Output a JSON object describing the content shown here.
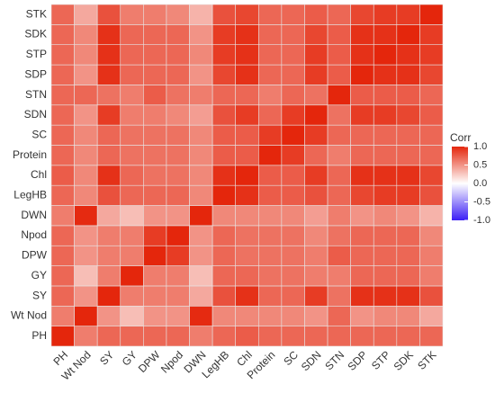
{
  "chart_data": {
    "type": "heatmap",
    "categories": [
      "PH",
      "Wt Nod",
      "SY",
      "GY",
      "DPW",
      "Npod",
      "DWN",
      "LegHB",
      "Chl",
      "Protein",
      "SC",
      "SDN",
      "STN",
      "SDP",
      "STP",
      "SDK",
      "STK"
    ],
    "values": [
      [
        1,
        0.6,
        0.7,
        0.7,
        0.7,
        0.7,
        0.6,
        0.7,
        0.75,
        0.7,
        0.7,
        0.7,
        0.7,
        0.7,
        0.7,
        0.7,
        0.7
      ],
      [
        0.6,
        1,
        0.5,
        0.3,
        0.5,
        0.5,
        0.98,
        0.55,
        0.55,
        0.55,
        0.55,
        0.5,
        0.7,
        0.5,
        0.55,
        0.55,
        0.4
      ],
      [
        0.7,
        0.5,
        1,
        0.6,
        0.6,
        0.6,
        0.4,
        0.8,
        0.95,
        0.7,
        0.7,
        0.9,
        0.65,
        0.95,
        0.95,
        0.95,
        0.8
      ],
      [
        0.7,
        0.3,
        0.6,
        1,
        0.6,
        0.6,
        0.3,
        0.7,
        0.7,
        0.65,
        0.65,
        0.6,
        0.6,
        0.7,
        0.7,
        0.7,
        0.6
      ],
      [
        0.7,
        0.5,
        0.6,
        0.6,
        1,
        0.9,
        0.5,
        0.7,
        0.65,
        0.65,
        0.65,
        0.6,
        0.75,
        0.7,
        0.7,
        0.7,
        0.6
      ],
      [
        0.7,
        0.5,
        0.6,
        0.6,
        0.9,
        1,
        0.5,
        0.7,
        0.65,
        0.65,
        0.65,
        0.55,
        0.65,
        0.7,
        0.7,
        0.7,
        0.55
      ],
      [
        0.6,
        0.98,
        0.4,
        0.3,
        0.5,
        0.5,
        1,
        0.55,
        0.55,
        0.55,
        0.55,
        0.45,
        0.6,
        0.5,
        0.55,
        0.5,
        0.35
      ],
      [
        0.7,
        0.55,
        0.8,
        0.7,
        0.7,
        0.7,
        0.55,
        1,
        0.95,
        0.75,
        0.75,
        0.8,
        0.7,
        0.85,
        0.9,
        0.9,
        0.8
      ],
      [
        0.75,
        0.55,
        0.95,
        0.7,
        0.65,
        0.65,
        0.55,
        0.95,
        1,
        0.75,
        0.75,
        0.9,
        0.7,
        0.95,
        0.95,
        0.95,
        0.85
      ],
      [
        0.7,
        0.55,
        0.7,
        0.65,
        0.65,
        0.65,
        0.55,
        0.75,
        0.75,
        1,
        0.9,
        0.7,
        0.6,
        0.7,
        0.7,
        0.7,
        0.7
      ],
      [
        0.7,
        0.55,
        0.7,
        0.65,
        0.65,
        0.65,
        0.55,
        0.75,
        0.75,
        0.9,
        1,
        0.9,
        0.7,
        0.7,
        0.7,
        0.7,
        0.7
      ],
      [
        0.7,
        0.5,
        0.9,
        0.6,
        0.6,
        0.55,
        0.45,
        0.8,
        0.9,
        0.7,
        0.9,
        1,
        0.65,
        0.9,
        0.9,
        0.85,
        0.75
      ],
      [
        0.7,
        0.7,
        0.65,
        0.6,
        0.75,
        0.65,
        0.6,
        0.7,
        0.7,
        0.6,
        0.7,
        0.65,
        1,
        0.75,
        0.75,
        0.75,
        0.7
      ],
      [
        0.7,
        0.5,
        0.95,
        0.7,
        0.7,
        0.7,
        0.5,
        0.85,
        0.95,
        0.7,
        0.7,
        0.9,
        0.75,
        1,
        0.95,
        0.95,
        0.85
      ],
      [
        0.7,
        0.55,
        0.95,
        0.7,
        0.7,
        0.7,
        0.55,
        0.9,
        0.95,
        0.7,
        0.7,
        0.9,
        0.75,
        0.95,
        1,
        0.95,
        0.9
      ],
      [
        0.7,
        0.55,
        0.95,
        0.7,
        0.7,
        0.7,
        0.5,
        0.9,
        0.95,
        0.7,
        0.7,
        0.85,
        0.75,
        0.95,
        0.95,
        1,
        0.9
      ],
      [
        0.7,
        0.4,
        0.8,
        0.6,
        0.6,
        0.55,
        0.35,
        0.8,
        0.85,
        0.7,
        0.7,
        0.75,
        0.7,
        0.85,
        0.9,
        0.9,
        1
      ]
    ],
    "legend_title": "Corr",
    "colorbar_lim": [
      -1,
      1
    ],
    "colorbar_ticks": [
      {
        "value": 1,
        "label": "1.0"
      },
      {
        "value": 0.5,
        "label": "0.5"
      },
      {
        "value": 0,
        "label": "0.0"
      },
      {
        "value": -0.5,
        "label": "-0.5"
      },
      {
        "value": -1,
        "label": "-1.0"
      }
    ],
    "colors": {
      "low": "#3b1ef5",
      "mid": "#ffffff",
      "high": "#e4260c"
    }
  }
}
